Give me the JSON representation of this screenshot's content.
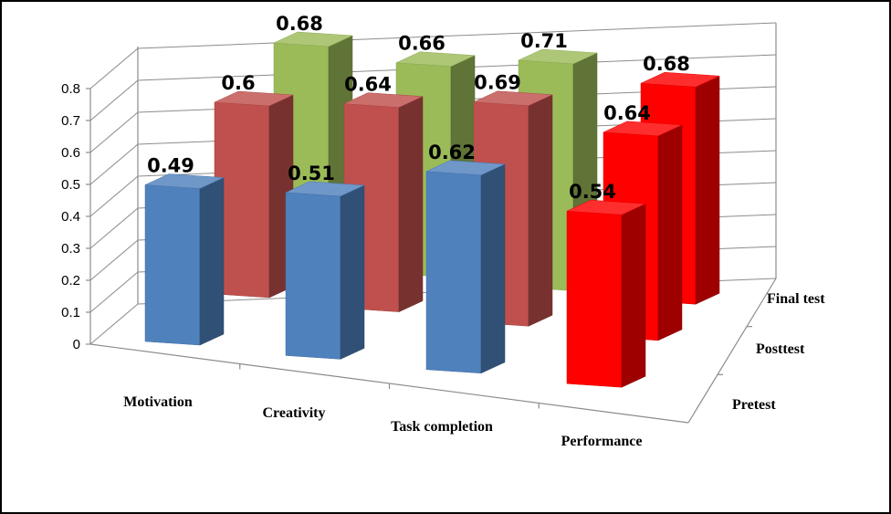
{
  "chart_data": {
    "type": "bar",
    "variant": "3d-clustered-columns",
    "categories": [
      "Motivation",
      "Creativity",
      "Task completion",
      "Performance"
    ],
    "series": [
      {
        "name": "Pretest",
        "values": [
          0.49,
          0.51,
          0.62,
          0.54
        ]
      },
      {
        "name": "Posttest",
        "values": [
          0.6,
          0.64,
          0.69,
          0.64
        ]
      },
      {
        "name": "Final test",
        "values": [
          0.68,
          0.66,
          0.71,
          0.68
        ]
      }
    ],
    "data_labels": [
      [
        "0.49",
        "0.51",
        "0.62",
        "0.54"
      ],
      [
        "0.6",
        "0.64",
        "0.69",
        "0.64"
      ],
      [
        "0.68",
        "0.66",
        "0.71",
        "0.68"
      ]
    ],
    "yticks": [
      "0",
      "0.1",
      "0.2",
      "0.3",
      "0.4",
      "0.5",
      "0.6",
      "0.7",
      "0.8"
    ],
    "ylim": [
      0,
      0.8
    ],
    "grid": true,
    "colors": {
      "series": [
        "#4f81bd",
        "#c0504d",
        "#9bbb59"
      ],
      "highlight": "#ff0000"
    },
    "title": "",
    "xlabel": "",
    "ylabel": ""
  }
}
